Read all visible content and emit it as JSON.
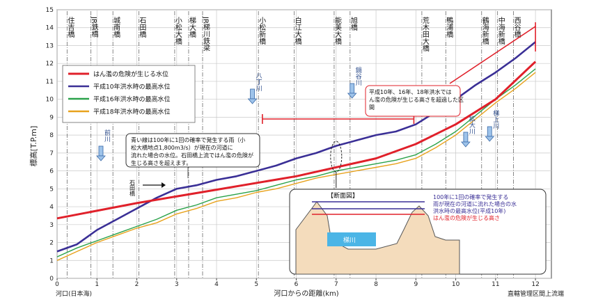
{
  "chart_data": {
    "type": "line",
    "xlabel": "河口からの距離(km)",
    "ylabel": "標高[T.P.m]",
    "xlim": [
      0,
      12.4
    ],
    "ylim": [
      0,
      15
    ],
    "x_ticks": [
      0,
      1,
      2,
      3,
      4,
      5,
      6,
      7,
      8,
      9,
      10,
      11,
      12
    ],
    "y_ticks": [
      0,
      1,
      2,
      3,
      4,
      5,
      6,
      7,
      8,
      9,
      10,
      11,
      12,
      13,
      14,
      15
    ],
    "x_left_label": "河口(日本海)",
    "x_right_label": "直轄管理区間上流端",
    "grid": true,
    "legend_position": "top-left",
    "series": [
      {
        "name": "はん濫の危険が生じる水位",
        "color": "#e0202a",
        "x": [
          0,
          2,
          4,
          6,
          8,
          9,
          10,
          11,
          12
        ],
        "y": [
          3.35,
          4.2,
          4.95,
          5.7,
          6.7,
          7.5,
          8.6,
          10.0,
          12.1
        ]
      },
      {
        "name": "平成10年洪水時の最高水位",
        "color": "#3a2f96",
        "x": [
          0,
          0.5,
          1.0,
          1.5,
          2.0,
          2.5,
          3.0,
          3.5,
          4.0,
          4.5,
          5.0,
          5.5,
          6.0,
          6.5,
          7.0,
          7.5,
          8.0,
          8.5,
          9.0,
          9.5,
          10.0,
          10.5,
          11.0,
          11.5,
          12.0
        ],
        "y": [
          1.5,
          1.9,
          2.7,
          3.3,
          3.9,
          4.5,
          5.0,
          5.2,
          5.5,
          5.7,
          6.0,
          6.3,
          6.7,
          7.0,
          7.4,
          7.7,
          8.0,
          8.2,
          8.6,
          9.3,
          10.0,
          10.8,
          11.5,
          12.3,
          13.2
        ]
      },
      {
        "name": "平成16年洪水時の最高水位",
        "color": "#2aa24a",
        "x": [
          0,
          0.5,
          1.0,
          1.5,
          2.0,
          2.5,
          3.0,
          3.5,
          4.0,
          4.5,
          5.0,
          5.5,
          6.0,
          6.5,
          7.0,
          7.5,
          8.0,
          8.5,
          9.0,
          9.5,
          10.0,
          10.5,
          11.0,
          11.5,
          12.0
        ],
        "y": [
          1.2,
          1.7,
          2.1,
          2.5,
          2.9,
          3.3,
          3.8,
          4.1,
          4.5,
          4.7,
          4.9,
          5.2,
          5.5,
          5.7,
          6.0,
          6.2,
          6.4,
          6.6,
          6.9,
          7.5,
          8.2,
          9.1,
          10.0,
          10.8,
          11.7
        ]
      },
      {
        "name": "平成18年洪水時の最高水位",
        "color": "#e8a21c",
        "x": [
          0,
          0.5,
          1.0,
          1.5,
          2.0,
          2.5,
          3.0,
          3.5,
          4.0,
          4.5,
          5.0,
          5.5,
          6.0,
          6.5,
          7.0,
          7.5,
          8.0,
          8.5,
          9.0,
          9.5,
          10.0,
          10.5,
          11.0,
          11.5,
          12.0
        ],
        "y": [
          1.0,
          1.5,
          2.0,
          2.4,
          2.8,
          3.1,
          3.6,
          3.9,
          4.3,
          4.5,
          4.8,
          5.0,
          5.3,
          5.6,
          5.8,
          6.0,
          6.2,
          6.4,
          6.7,
          7.3,
          8.0,
          8.9,
          9.8,
          10.6,
          11.5
        ]
      }
    ],
    "bridges": [
      {
        "km": 0.25,
        "label": "住吉橋"
      },
      {
        "km": 0.85,
        "label": "JR鉄橋"
      },
      {
        "km": 1.4,
        "label": "城南橋"
      },
      {
        "km": 2.05,
        "label": "石田橋"
      },
      {
        "km": 2.95,
        "label": "小松大橋"
      },
      {
        "km": 3.3,
        "label": "梯大橋"
      },
      {
        "km": 3.65,
        "label": "JR梯川鉄梁"
      },
      {
        "km": 5.05,
        "label": "小松新橋"
      },
      {
        "km": 5.95,
        "label": "白江大橋"
      },
      {
        "km": 6.95,
        "label": "能美大橋"
      },
      {
        "km": 7.35,
        "label": "旭橋"
      },
      {
        "km": 9.15,
        "label": "荒木田大橋"
      },
      {
        "km": 9.75,
        "label": "鴨浦橋"
      },
      {
        "km": 10.65,
        "label": "鶴海新橋"
      },
      {
        "km": 11.05,
        "label": "中海新橋"
      },
      {
        "km": 11.45,
        "label": "西谷橋"
      }
    ],
    "tributaries": [
      {
        "km": 1.1,
        "label": "前川"
      },
      {
        "km": 4.9,
        "label": "八丁川"
      },
      {
        "km": 7.4,
        "label": "鍋谷川"
      },
      {
        "km": 10.85,
        "label": "梯上川"
      },
      {
        "km": 10.25,
        "label": "拡大川"
      }
    ],
    "annotations": {
      "note_blue": "青い線は100年に1回の確率で発生する雨（小松大橋地点1,800m3/s）が現在の河道に流れた場合の水位。石田橋上流ではん濫の危険が生じる高さを超えます。",
      "note_red": "平成10年、16年、18年洪水ではん濫の危険が生じる高さを超過した区間",
      "ishida_label": "石田橋",
      "inset_title": "断面図",
      "inset_river": "梯川",
      "inset_legend": [
        "100年に1回の確率で発生する雨が現在の河道に流れた場合の水位",
        "洪水時の最高水位(平成10年)",
        "はん濫の危険が生じる高さ"
      ]
    }
  }
}
